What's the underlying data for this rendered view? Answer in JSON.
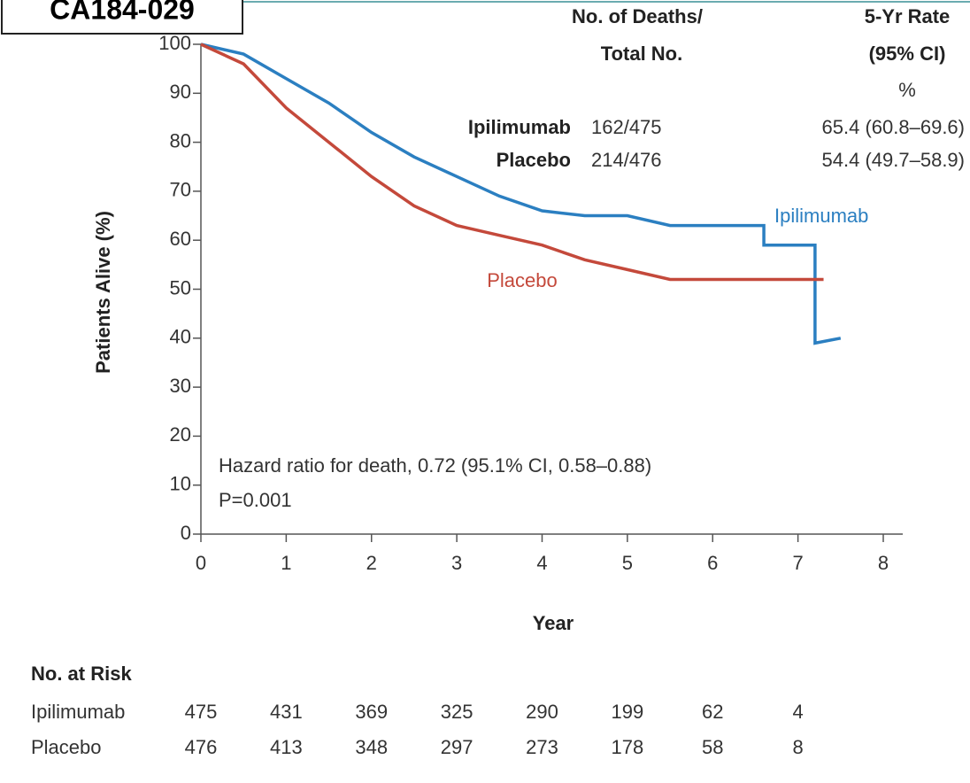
{
  "header": {
    "label": "CA184-029"
  },
  "chart_data": {
    "type": "line",
    "y_label": "Patients Alive (%)",
    "x_label": "Year",
    "xlim": [
      0,
      8
    ],
    "ylim": [
      0,
      100
    ],
    "xticks": [
      0,
      1,
      2,
      3,
      4,
      5,
      6,
      7,
      8
    ],
    "yticks": [
      0,
      10,
      20,
      30,
      40,
      50,
      60,
      70,
      80,
      90,
      100
    ],
    "series": [
      {
        "name": "Ipilimumab",
        "color": "#2b7fc1",
        "x": [
          0,
          0.5,
          1,
          1.5,
          2,
          2.5,
          3,
          3.5,
          4,
          4.5,
          5,
          5.5,
          6,
          6.6,
          6.6,
          7.2,
          7.2,
          7.5
        ],
        "values": [
          100,
          98,
          93,
          88,
          82,
          77,
          73,
          69,
          66,
          65,
          65,
          63,
          63,
          63,
          59,
          59,
          39,
          40
        ],
        "deaths": "162/475",
        "rate": "65.4 (60.8–69.6)"
      },
      {
        "name": "Placebo",
        "color": "#c4493b",
        "x": [
          0,
          0.5,
          1,
          1.5,
          2,
          2.5,
          3,
          3.5,
          4,
          4.5,
          5,
          5.5,
          6,
          7,
          7.3
        ],
        "values": [
          100,
          96,
          87,
          80,
          73,
          67,
          63,
          61,
          59,
          56,
          54,
          52,
          52,
          52,
          52
        ],
        "deaths": "214/476",
        "rate": "54.4 (49.7–58.9)"
      }
    ],
    "legend_headers": {
      "deaths": [
        "No. of Deaths/",
        "Total No."
      ],
      "rate": [
        "5-Yr Rate",
        "(95% CI)",
        "%"
      ]
    },
    "annotations": [
      "Hazard ratio for death, 0.72 (95.1% CI, 0.58–0.88)",
      "P=0.001"
    ],
    "risk_table": {
      "title": "No. at Risk",
      "rows": [
        [
          475,
          431,
          369,
          325,
          290,
          199,
          62,
          4
        ],
        [
          476,
          413,
          348,
          297,
          273,
          178,
          58,
          8
        ]
      ]
    }
  }
}
